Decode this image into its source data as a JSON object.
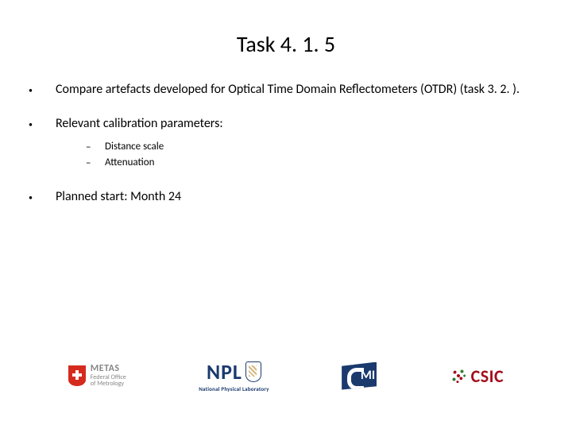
{
  "title": "Task 4. 1. 5",
  "bullets": [
    {
      "text": "Compare artefacts developed for Optical Time Domain Reflectometers (OTDR) (task 3. 2. )."
    },
    {
      "text": "Relevant calibration parameters:"
    },
    {
      "text": "Planned start: Month 24"
    }
  ],
  "sub_bullets": [
    {
      "text": "Distance scale"
    },
    {
      "text": "Attenuation"
    }
  ],
  "logos": {
    "metas": {
      "line1": "METAS",
      "line2": "Federal Office",
      "line3": "of Metrology"
    },
    "npl": {
      "big": "NPL",
      "sub": "National Physical Laboratory"
    },
    "csic": {
      "text": "CSIC"
    }
  },
  "colors": {
    "text": "#000000",
    "metas_red": "#d52b1e",
    "metas_grey": "#878787",
    "npl_blue": "#1a3a6e",
    "cmi_blue": "#1a3a6e",
    "csic_red": "#a30f1d",
    "csic_green": "#2e7d32",
    "background": "#ffffff"
  },
  "typography": {
    "title_fontsize": 28,
    "bullet_fontsize": 16,
    "sub_bullet_fontsize": 13,
    "font_family": "Calibri"
  }
}
